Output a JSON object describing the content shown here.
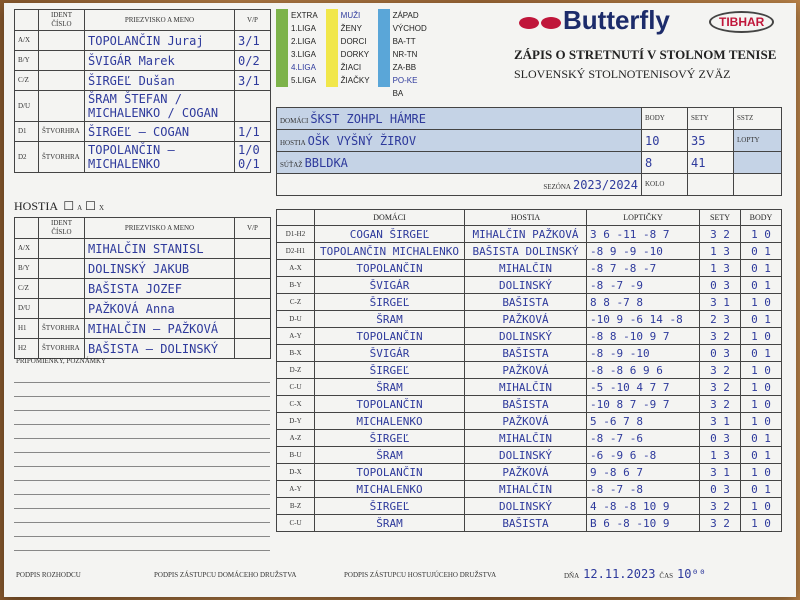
{
  "form": {
    "title": "ZÁPIS O STRETNUTÍ V STOLNOM TENISE",
    "federation": "SLOVENSKÝ STOLNOTENISOVÝ ZVÄZ",
    "brand": "Butterfly",
    "brand2": "TIBHAR",
    "sstz": "SSTZ",
    "brand_color": "#1c2b6a",
    "accent": "#c0163a",
    "ink": "#2e3a9c"
  },
  "leagues": {
    "col1": [
      "EXTRA",
      "1.LIGA",
      "2.LIGA",
      "3.LIGA",
      "4.LIGA",
      "5.LIGA"
    ],
    "col2": [
      "MUŽI",
      "ŽENY",
      "DORCI",
      "DORKY",
      "ŽIACI",
      "ŽIAČKY"
    ],
    "col3": [
      "ZÁPAD",
      "VÝCHOD",
      "BA-TT",
      "NR-TN",
      "ZA-BB",
      "PO-KE",
      "BA"
    ],
    "checked": [
      "4.LIGA",
      "MUŽI",
      "PO-KE"
    ]
  },
  "match": {
    "home_label": "DOMÁCI",
    "away_label": "HOSTIA",
    "competition_label": "SÚŤAŽ",
    "home": "ŠKST ZOHPL HÁMRE",
    "away": "OŠK VYŠNÝ ŽIROV",
    "competition": "BBLDKA",
    "body_label": "BODY",
    "sety_label": "SETY",
    "lopty_label": "LOPTY",
    "home_points": "10",
    "home_sets": "35",
    "away_points": "8",
    "away_sets": "41",
    "season_label": "SEZÓNA",
    "season": "2023/2024",
    "kolo_label": "KOLO",
    "date_label": "DŇA",
    "date": "12.11.2023",
    "time_label": "ČAS",
    "time": "10⁰⁰"
  },
  "home_team": {
    "header": {
      "id": "IDENT ČÍSLO",
      "name": "PRIEZVISKO A MENO",
      "vp": "V/P"
    },
    "players": [
      {
        "slot": "A/X",
        "name": "TOPOLANČIN Juraj",
        "vp": "3/1"
      },
      {
        "slot": "B/Y",
        "name": "ŠVIGÁR Marek",
        "vp": "0/2"
      },
      {
        "slot": "C/Z",
        "name": "ŠIRGEĽ Dušan",
        "vp": "3/1"
      },
      {
        "slot": "D/U",
        "name": "ŠRAM ŠTEFAN / MICHALENKO / COGAN",
        "vp": ""
      }
    ],
    "doubles": [
      {
        "slot": "D1",
        "label": "ŠTVORHRA",
        "name": "ŠIRGEĽ – COGAN",
        "vp": "1/1"
      },
      {
        "slot": "D2",
        "label": "ŠTVORHRA",
        "name": "TOPOLANČIN – MICHALENKO",
        "vp": "1/0 0/1"
      }
    ]
  },
  "away_team": {
    "title": "HOSTIA",
    "opt_a": "A",
    "opt_x": "X",
    "header": {
      "id": "IDENT ČÍSLO",
      "name": "PRIEZVISKO A MENO",
      "vp": "V/P"
    },
    "players": [
      {
        "slot": "A/X",
        "name": "MIHALČIN STANISL"
      },
      {
        "slot": "B/Y",
        "name": "DOLINSKÝ JAKUB"
      },
      {
        "slot": "C/Z",
        "name": "BAŠISTA JOZEF"
      },
      {
        "slot": "D/U",
        "name": "PAŽKOVÁ Anna"
      }
    ],
    "doubles": [
      {
        "slot": "H1",
        "label": "ŠTVORHRA",
        "name": "MIHALČIN – PAŽKOVÁ"
      },
      {
        "slot": "H2",
        "label": "ŠTVORHRA",
        "name": "BAŠISTA – DOLINSKÝ"
      }
    ],
    "notes_label": "PRIPOMIENKY, POZNÁMKY"
  },
  "games_header": {
    "home": "DOMÁCI",
    "away": "HOSTIA",
    "balls": "LOPTIČKY",
    "sets": "SETY",
    "points": "BODY"
  },
  "games": [
    {
      "code": "D1-H2",
      "home": "COGAN ŠIRGEĽ",
      "away": "MIHALČIN PAŽKOVÁ",
      "scores": "3 6 -11 -8 7",
      "sets": "3 2",
      "points": "1 0"
    },
    {
      "code": "D2-H1",
      "home": "TOPOLANČIN MICHALENKO",
      "away": "BAŠISTA DOLINSKÝ",
      "scores": "-8 9 -9 -10",
      "sets": "1 3",
      "points": "0 1"
    },
    {
      "code": "A-X",
      "home": "TOPOLANČIN",
      "away": "MIHALČIN",
      "scores": "-8 7 -8 -7",
      "sets": "1 3",
      "points": "0 1"
    },
    {
      "code": "B-Y",
      "home": "ŠVIGÁR",
      "away": "DOLINSKÝ",
      "scores": "-8 -7 -9",
      "sets": "0 3",
      "points": "0 1"
    },
    {
      "code": "C-Z",
      "home": "ŠIRGEĽ",
      "away": "BAŠISTA",
      "scores": "8 8 -7 8",
      "sets": "3 1",
      "points": "1 0"
    },
    {
      "code": "D-U",
      "home": "ŠRAM",
      "away": "PAŽKOVÁ",
      "scores": "-10 9 -6 14 -8",
      "sets": "2 3",
      "points": "0 1"
    },
    {
      "code": "A-Y",
      "home": "TOPOLANČIN",
      "away": "DOLINSKÝ",
      "scores": "-8 8 -10 9 7",
      "sets": "3 2",
      "points": "1 0"
    },
    {
      "code": "B-X",
      "home": "ŠVIGÁR",
      "away": "BAŠISTA",
      "scores": "-8 -9 -10",
      "sets": "0 3",
      "points": "0 1"
    },
    {
      "code": "D-Z",
      "home": "ŠIRGEĽ",
      "away": "PAŽKOVÁ",
      "scores": "-8 -8 6 9 6",
      "sets": "3 2",
      "points": "1 0"
    },
    {
      "code": "C-U",
      "home": "ŠRAM",
      "away": "MIHALČIN",
      "scores": "-5 -10 4 7 7",
      "sets": "3 2",
      "points": "1 0"
    },
    {
      "code": "C-X",
      "home": "TOPOLANČIN",
      "away": "BAŠISTA",
      "scores": "-10 8 7 -9 7",
      "sets": "3 2",
      "points": "1 0"
    },
    {
      "code": "D-Y",
      "home": "MICHALENKO",
      "away": "PAŽKOVÁ",
      "scores": "5 -6 7 8",
      "sets": "3 1",
      "points": "1 0"
    },
    {
      "code": "A-Z",
      "home": "ŠIRGEĽ",
      "away": "MIHALČIN",
      "scores": "-8 -7 -6",
      "sets": "0 3",
      "points": "0 1"
    },
    {
      "code": "B-U",
      "home": "ŠRAM",
      "away": "DOLINSKÝ",
      "scores": "-6 -9 6 -8",
      "sets": "1 3",
      "points": "0 1"
    },
    {
      "code": "D-X",
      "home": "TOPOLANČIN",
      "away": "PAŽKOVÁ",
      "scores": "9 -8 6 7",
      "sets": "3 1",
      "points": "1 0"
    },
    {
      "code": "A-Y",
      "home": "MICHALENKO",
      "away": "MIHALČIN",
      "scores": "-8 -7 -8",
      "sets": "0 3",
      "points": "0 1"
    },
    {
      "code": "B-Z",
      "home": "ŠIRGEĽ",
      "away": "DOLINSKÝ",
      "scores": "4 -8 -8 10 9",
      "sets": "3 2",
      "points": "1 0"
    },
    {
      "code": "C-U",
      "home": "ŠRAM",
      "away": "BAŠISTA",
      "scores": "B 6 -8 -10 9",
      "sets": "3 2",
      "points": "1 0"
    }
  ],
  "signatures": {
    "referee": "PODPIS ROZHODCU",
    "home_rep": "PODPIS ZÁSTUPCU DOMÁCEHO DRUŽSTVA",
    "away_rep": "PODPIS ZÁSTUPCU HOSTUJÚCEHO DRUŽSTVA"
  }
}
